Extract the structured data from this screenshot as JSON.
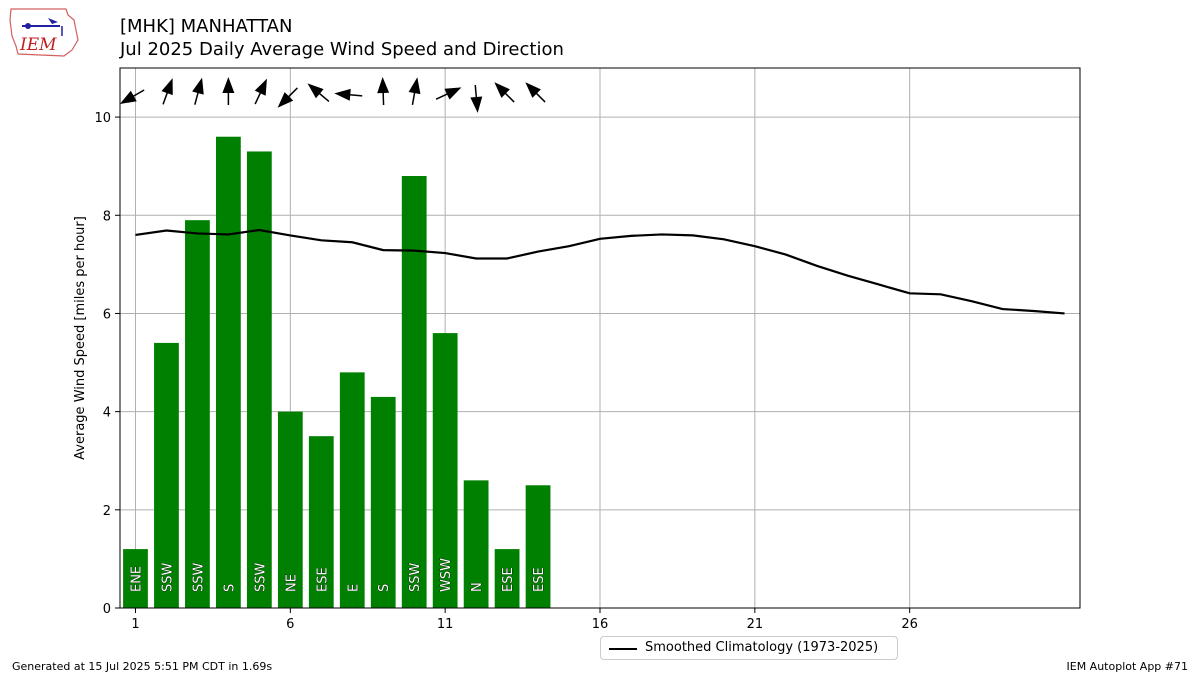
{
  "header": {
    "station": "[MHK] MANHATTAN",
    "subtitle": "Jul 2025 Daily Average Wind Speed and Direction"
  },
  "logo": {
    "text": "IEM",
    "icon": "iem-iowa-logo"
  },
  "footer": {
    "generated": "Generated at 15 Jul 2025 5:51 PM CDT in 1.69s",
    "app": "IEM Autoplot App #71"
  },
  "legend": {
    "label": "Smoothed Climatology (1973-2025)"
  },
  "colors": {
    "bar": "#008000",
    "line": "#000000",
    "grid": "#b0b0b0",
    "arrow": "#000000"
  },
  "chart_data": {
    "type": "bar",
    "xlabel": "",
    "ylabel": "Average Wind Speed [miles per hour]",
    "xlim": [
      0.5,
      31.5
    ],
    "ylim": [
      0,
      11
    ],
    "xticks": [
      1,
      6,
      11,
      16,
      21,
      26
    ],
    "yticks": [
      0,
      2,
      4,
      6,
      8,
      10
    ],
    "grid": true,
    "legend_position": "bottom-center",
    "bars": {
      "days": [
        1,
        2,
        3,
        4,
        5,
        6,
        7,
        8,
        9,
        10,
        11,
        12,
        13,
        14
      ],
      "values": [
        1.2,
        5.4,
        7.9,
        9.6,
        9.3,
        4.0,
        3.5,
        4.8,
        4.3,
        8.8,
        5.6,
        2.6,
        1.2,
        2.5
      ],
      "directions": [
        "ENE",
        "SSW",
        "SSW",
        "S",
        "SSW",
        "NE",
        "ESE",
        "E",
        "S",
        "SSW",
        "WSW",
        "N",
        "ESE",
        "ESE"
      ]
    },
    "arrows": {
      "days": [
        1,
        2,
        3,
        4,
        5,
        6,
        7,
        8,
        9,
        10,
        11,
        12,
        13,
        14
      ],
      "direction_deg": [
        60,
        200,
        195,
        180,
        205,
        45,
        130,
        95,
        178,
        190,
        245,
        355,
        135,
        135
      ]
    },
    "series": [
      {
        "name": "Smoothed Climatology (1973-2025)",
        "x": [
          1,
          2,
          3,
          4,
          5,
          6,
          7,
          8,
          9,
          10,
          11,
          12,
          13,
          14,
          15,
          16,
          17,
          18,
          19,
          20,
          21,
          22,
          23,
          24,
          25,
          26,
          27,
          28,
          29,
          30,
          31
        ],
        "values": [
          7.6,
          7.69,
          7.63,
          7.61,
          7.7,
          7.59,
          7.49,
          7.45,
          7.29,
          7.28,
          7.23,
          7.12,
          7.12,
          7.26,
          7.37,
          7.52,
          7.58,
          7.61,
          7.59,
          7.51,
          7.37,
          7.2,
          6.97,
          6.77,
          6.59,
          6.41,
          6.39,
          6.25,
          6.09,
          6.05,
          6.0
        ]
      }
    ]
  }
}
